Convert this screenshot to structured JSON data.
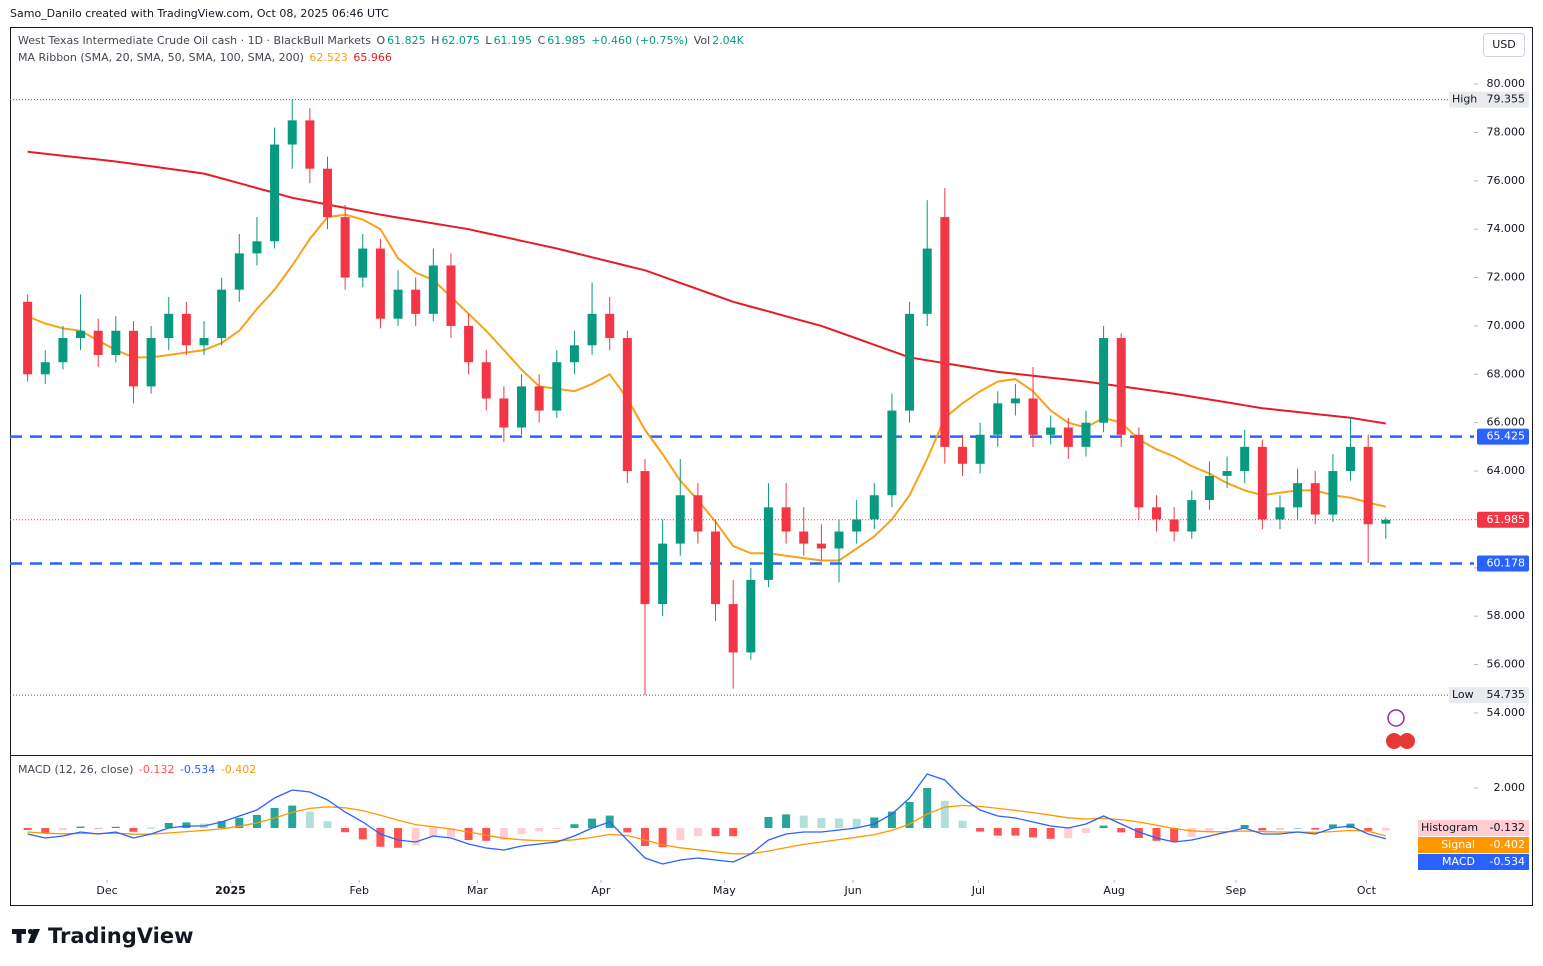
{
  "header": {
    "text": "Samo_Danilo created with TradingView.com, Oct 08, 2025 06:46 UTC"
  },
  "currency": "USD",
  "brand": "TradingView",
  "chart_data": [
    {
      "type": "candlestick",
      "title": "West Texas Intermediate Crude Oil cash · 1D · BlackBull Markets",
      "ohlc_labels": [
        "O",
        "H",
        "L",
        "C"
      ],
      "change": "+0.460 (+0.75%)",
      "volume_label": "Vol",
      "volume": "2.04K",
      "indicator": "MA Ribbon (SMA, 20, SMA, 50, SMA, 100, SMA, 200)",
      "up_color": "#089981",
      "down_color": "#f23645",
      "xlim": [
        -1,
        82
      ],
      "xticks": [
        {
          "value": 4.5,
          "label": "Dec"
        },
        {
          "value": 11.5,
          "label": "2025"
        },
        {
          "value": 18.8,
          "label": "Feb"
        },
        {
          "value": 25.5,
          "label": "Mar"
        },
        {
          "value": 32.5,
          "label": "Apr"
        },
        {
          "value": 39.5,
          "label": "May"
        },
        {
          "value": 46.8,
          "label": "Jun"
        },
        {
          "value": 53.9,
          "label": "Jul"
        },
        {
          "value": 61.6,
          "label": "Aug"
        },
        {
          "value": 68.5,
          "label": "Sep"
        },
        {
          "value": 75.9,
          "label": "Oct"
        }
      ],
      "ylim": [
        52.26,
        82.36
      ],
      "yticks": [
        {
          "value": 54,
          "label": "54.000"
        },
        {
          "value": 56,
          "label": "56.000"
        },
        {
          "value": 58,
          "label": "58.000"
        },
        {
          "value": 60,
          "label": "60.000"
        },
        {
          "value": 62,
          "label": "62.000"
        },
        {
          "value": 64,
          "label": "64.000"
        },
        {
          "value": 66,
          "label": "66.000"
        },
        {
          "value": 68,
          "label": "68.000"
        },
        {
          "value": 70,
          "label": "70.000"
        },
        {
          "value": 72,
          "label": "72.000"
        },
        {
          "value": 74,
          "label": "74.000"
        },
        {
          "value": 76,
          "label": "76.000"
        },
        {
          "value": 78,
          "label": "78.000"
        },
        {
          "value": 80,
          "label": "80.000"
        }
      ],
      "grid": false,
      "open": [
        71.0,
        68.0,
        68.5,
        69.5,
        69.8,
        68.8,
        69.8,
        67.5,
        69.5,
        70.5,
        69.2,
        69.5,
        71.5,
        73.0,
        73.5,
        77.5,
        78.5,
        76.5,
        74.5,
        72.0,
        73.2,
        70.3,
        71.5,
        70.5,
        72.5,
        70.0,
        68.5,
        67.0,
        65.8,
        67.5,
        66.5,
        68.5,
        69.2,
        70.5,
        69.5,
        64.0,
        58.5,
        61.0,
        63.0,
        61.5,
        58.5,
        56.5,
        59.5,
        62.5,
        61.5,
        61.0,
        60.8,
        61.5,
        62.0,
        63.0,
        66.5,
        70.5,
        74.5,
        65.0,
        64.3,
        65.5,
        66.8,
        67.0,
        65.5,
        65.8,
        65.0,
        66.0,
        69.5,
        65.5,
        62.5,
        62.0,
        61.5,
        62.8,
        63.8,
        64.0,
        65.0,
        62.0,
        62.5,
        63.5,
        62.2,
        64.0,
        65.0,
        61.825
      ],
      "high": [
        71.3,
        69.0,
        70.0,
        71.3,
        70.3,
        70.4,
        70.2,
        70.0,
        71.2,
        71.0,
        70.2,
        72.0,
        73.8,
        74.5,
        78.2,
        79.355,
        79.0,
        77.0,
        75.0,
        73.8,
        73.6,
        72.3,
        72.0,
        73.2,
        73.0,
        70.5,
        69.0,
        67.5,
        68.0,
        68.0,
        69.0,
        69.8,
        71.8,
        71.2,
        69.8,
        64.5,
        62.0,
        64.5,
        63.5,
        62.0,
        59.5,
        60.0,
        63.5,
        63.5,
        62.5,
        61.8,
        62.0,
        62.8,
        63.5,
        67.2,
        71.0,
        75.2,
        75.7,
        65.5,
        66.0,
        67.3,
        67.6,
        68.3,
        66.3,
        66.2,
        66.5,
        70.0,
        69.7,
        65.8,
        63.0,
        62.5,
        63.2,
        64.4,
        64.6,
        65.7,
        65.3,
        63.0,
        64.1,
        64.0,
        64.7,
        66.2,
        65.5,
        62.075
      ],
      "low": [
        67.7,
        67.6,
        68.2,
        69.0,
        68.3,
        68.5,
        66.8,
        67.2,
        69.0,
        68.8,
        68.8,
        69.2,
        71.0,
        72.5,
        73.2,
        76.5,
        75.9,
        74.0,
        71.5,
        71.6,
        69.9,
        70.0,
        70.0,
        70.2,
        69.5,
        68.0,
        66.5,
        65.2,
        65.5,
        66.0,
        66.2,
        68.0,
        68.8,
        69.0,
        63.5,
        54.735,
        58.0,
        60.5,
        61.0,
        57.8,
        55.0,
        56.2,
        59.2,
        61.0,
        60.5,
        60.3,
        59.4,
        61.0,
        61.6,
        62.5,
        66.0,
        70.0,
        64.3,
        63.8,
        63.9,
        65.0,
        66.3,
        65.0,
        65.1,
        64.5,
        64.6,
        65.6,
        65.0,
        62.0,
        61.5,
        61.1,
        61.2,
        62.4,
        63.3,
        63.5,
        61.6,
        61.6,
        62.0,
        61.8,
        61.9,
        63.6,
        60.2,
        61.195
      ],
      "close": [
        68.0,
        68.5,
        69.5,
        69.8,
        68.8,
        69.8,
        67.5,
        69.5,
        70.5,
        69.2,
        69.5,
        71.5,
        73.0,
        73.5,
        77.5,
        78.5,
        76.5,
        74.5,
        72.0,
        73.2,
        70.3,
        71.5,
        70.5,
        72.5,
        70.0,
        68.5,
        67.0,
        65.8,
        67.5,
        66.5,
        68.5,
        69.2,
        70.5,
        69.5,
        64.0,
        58.5,
        61.0,
        63.0,
        61.5,
        58.5,
        56.5,
        59.5,
        62.5,
        61.5,
        61.0,
        60.8,
        61.5,
        62.0,
        63.0,
        66.5,
        70.5,
        73.2,
        65.0,
        64.3,
        65.5,
        66.8,
        67.0,
        65.5,
        65.8,
        65.0,
        66.0,
        69.5,
        65.5,
        62.5,
        62.0,
        61.5,
        62.8,
        63.8,
        64.0,
        65.0,
        62.0,
        62.5,
        63.5,
        62.2,
        64.0,
        65.0,
        61.8,
        61.985
      ],
      "series": [
        {
          "color": "#f7a21b",
          "values": [
            70.4,
            70.1,
            69.9,
            69.8,
            69.4,
            69.0,
            68.7,
            68.7,
            68.8,
            68.9,
            69.0,
            69.3,
            69.8,
            70.7,
            71.5,
            72.5,
            73.6,
            74.5,
            74.6,
            74.4,
            74.0,
            72.8,
            72.2,
            71.9,
            71.2,
            70.5,
            69.8,
            69.0,
            68.2,
            67.5,
            67.4,
            67.3,
            67.6,
            68.0,
            67.0,
            65.7,
            64.7,
            63.6,
            62.8,
            61.9,
            60.9,
            60.6,
            60.6,
            60.5,
            60.4,
            60.3,
            60.3,
            60.8,
            61.3,
            62.0,
            63.0,
            64.5,
            66.2,
            66.8,
            67.3,
            67.7,
            67.8,
            67.3,
            66.5,
            66.0,
            65.8,
            66.2,
            66.0,
            65.3,
            64.9,
            64.6,
            64.2,
            63.9,
            63.5,
            63.2,
            63.0,
            63.1,
            63.2,
            63.2,
            63.0,
            62.9,
            62.7,
            62.523
          ]
        },
        {
          "color": "#e51c23",
          "values": [
            77.2,
            77.12,
            77.04,
            76.96,
            76.88,
            76.8,
            76.7,
            76.6,
            76.5,
            76.4,
            76.3,
            76.1,
            75.9,
            75.7,
            75.5,
            75.3,
            75.16,
            75.02,
            74.88,
            74.74,
            74.6,
            74.48,
            74.36,
            74.24,
            74.12,
            74.0,
            73.84,
            73.68,
            73.52,
            73.36,
            73.2,
            73.02,
            72.84,
            72.66,
            72.48,
            72.3,
            72.04,
            71.78,
            71.52,
            71.26,
            71.0,
            70.8,
            70.6,
            70.4,
            70.2,
            70.0,
            69.74,
            69.48,
            69.22,
            68.96,
            68.7,
            68.58,
            68.46,
            68.34,
            68.22,
            68.1,
            68.02,
            67.94,
            67.86,
            67.78,
            67.7,
            67.6,
            67.5,
            67.4,
            67.3,
            67.2,
            67.08,
            66.96,
            66.84,
            66.72,
            66.6,
            66.52,
            66.44,
            66.36,
            66.28,
            66.2,
            66.08,
            65.966
          ]
        }
      ],
      "levels": [
        {
          "value": 65.425,
          "color": "#2962ff"
        },
        {
          "value": 60.178,
          "color": "#2962ff"
        }
      ],
      "high_marker": {
        "label": "High",
        "value": 79.355
      },
      "low_marker": {
        "label": "Low",
        "value": 54.735
      }
    },
    {
      "type": "macd",
      "title": "MACD (12, 26, close)",
      "ylim": [
        -2.6,
        3.65
      ],
      "yticks": [
        {
          "value": 2,
          "label": "2.000"
        }
      ],
      "series": [
        {
          "name": "Histogram",
          "color": "#ffcdd2",
          "colors": [
            "#26a69a",
            "#b2dfdb",
            "#ff5252",
            "#ffcdd2"
          ],
          "values": [
            -0.1,
            -0.24,
            -0.11,
            0.07,
            -0.02,
            0.06,
            -0.19,
            0.01,
            0.25,
            0.28,
            0.22,
            0.34,
            0.51,
            0.65,
            1.0,
            1.12,
            0.82,
            0.34,
            -0.21,
            -0.57,
            -0.94,
            -0.99,
            -0.87,
            -0.46,
            -0.45,
            -0.6,
            -0.64,
            -0.59,
            -0.31,
            -0.17,
            -0.06,
            0.19,
            0.47,
            0.62,
            -0.22,
            -0.9,
            -0.96,
            -0.61,
            -0.41,
            -0.41,
            -0.41,
            -0.01,
            0.55,
            0.68,
            0.62,
            0.5,
            0.48,
            0.46,
            0.53,
            0.82,
            1.3,
            2.0,
            1.36,
            0.37,
            -0.18,
            -0.38,
            -0.38,
            -0.47,
            -0.54,
            -0.51,
            -0.25,
            0.12,
            -0.22,
            -0.5,
            -0.64,
            -0.67,
            -0.46,
            -0.21,
            -0.01,
            0.15,
            -0.12,
            -0.1,
            0.0,
            -0.08,
            0.18,
            0.22,
            -0.14,
            -0.132
          ]
        },
        {
          "name": "Signal",
          "color": "#ff9800",
          "values": [
            -0.2,
            -0.26,
            -0.29,
            -0.27,
            -0.28,
            -0.26,
            -0.31,
            -0.31,
            -0.25,
            -0.18,
            -0.12,
            -0.04,
            0.09,
            0.25,
            0.5,
            0.78,
            0.98,
            1.06,
            1.01,
            0.87,
            0.64,
            0.39,
            0.17,
            0.06,
            -0.05,
            -0.2,
            -0.36,
            -0.51,
            -0.59,
            -0.63,
            -0.64,
            -0.59,
            -0.47,
            -0.32,
            -0.38,
            -0.6,
            -0.84,
            -0.99,
            -1.09,
            -1.19,
            -1.29,
            -1.29,
            -1.15,
            -0.98,
            -0.82,
            -0.7,
            -0.58,
            -0.46,
            -0.33,
            -0.12,
            0.2,
            0.7,
            1.04,
            1.13,
            1.08,
            0.98,
            0.88,
            0.77,
            0.64,
            0.51,
            0.45,
            0.48,
            0.42,
            0.3,
            0.14,
            -0.03,
            -0.14,
            -0.19,
            -0.19,
            -0.15,
            -0.18,
            -0.2,
            -0.2,
            -0.22,
            -0.18,
            -0.12,
            -0.16,
            -0.402
          ]
        },
        {
          "name": "MACD",
          "color": "#2962ff",
          "values": [
            -0.3,
            -0.5,
            -0.4,
            -0.2,
            -0.3,
            -0.2,
            -0.5,
            -0.3,
            0.0,
            0.1,
            0.1,
            0.3,
            0.6,
            0.9,
            1.5,
            1.9,
            1.8,
            1.4,
            0.8,
            0.3,
            -0.3,
            -0.6,
            -0.7,
            -0.4,
            -0.5,
            -0.8,
            -1.0,
            -1.1,
            -0.9,
            -0.8,
            -0.7,
            -0.4,
            0.0,
            0.3,
            -0.6,
            -1.5,
            -1.8,
            -1.6,
            -1.5,
            -1.6,
            -1.7,
            -1.3,
            -0.6,
            -0.3,
            -0.2,
            -0.2,
            -0.1,
            0.0,
            0.2,
            0.7,
            1.5,
            2.7,
            2.4,
            1.5,
            0.9,
            0.6,
            0.5,
            0.3,
            0.1,
            0.0,
            0.2,
            0.6,
            0.2,
            -0.2,
            -0.5,
            -0.7,
            -0.6,
            -0.4,
            -0.2,
            0.0,
            -0.3,
            -0.3,
            -0.2,
            -0.3,
            0.0,
            0.1,
            -0.3,
            -0.534
          ]
        }
      ]
    }
  ]
}
